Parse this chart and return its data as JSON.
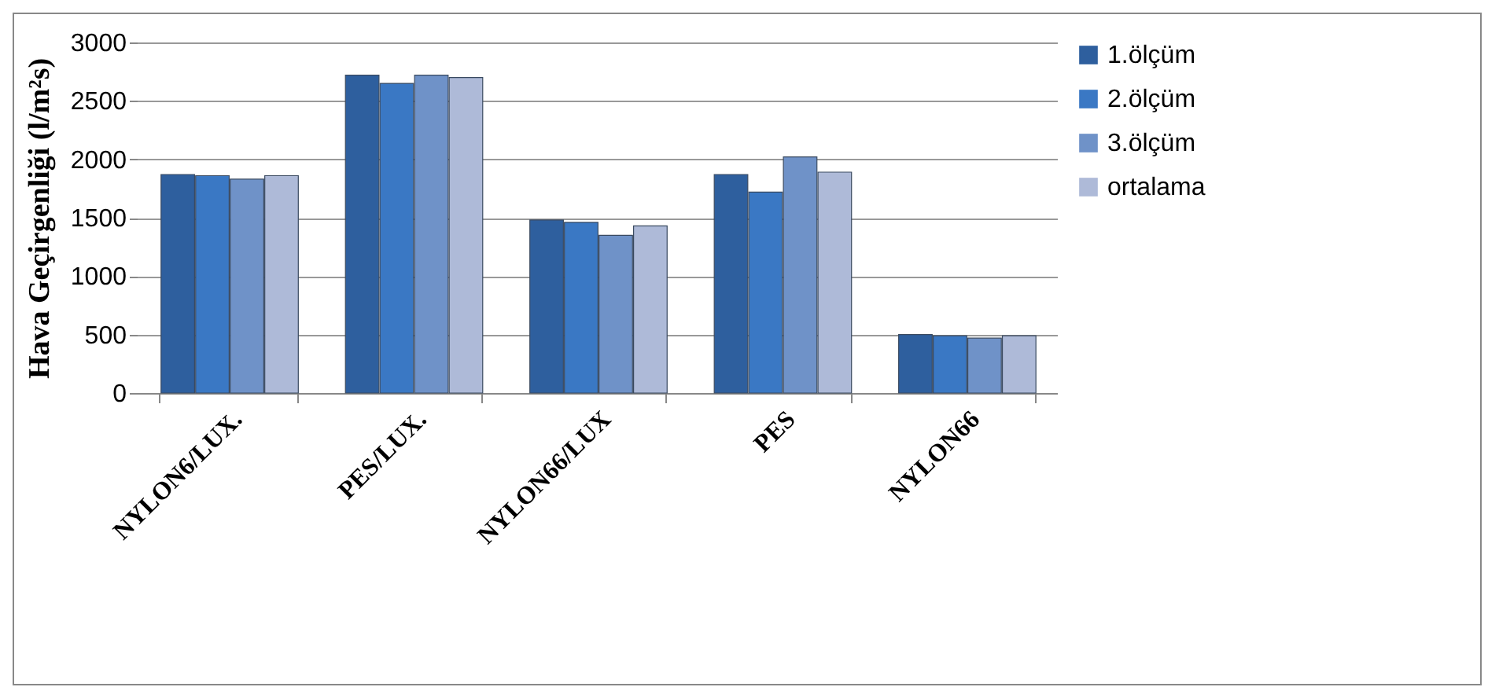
{
  "chart_data": {
    "type": "bar",
    "ylabel": "Hava Geçirgenliği (l/m²s)",
    "categories": [
      "NYLON6/LUX.",
      "PES/LUX.",
      "NYLON66/LUX",
      "PES",
      "NYLON66"
    ],
    "series": [
      {
        "name": "1.ölçüm",
        "color": "#2e5f9e",
        "values": [
          1870,
          2720,
          1480,
          1870,
          500
        ]
      },
      {
        "name": "2.ölçüm",
        "color": "#3a78c4",
        "values": [
          1860,
          2650,
          1460,
          1720,
          490
        ]
      },
      {
        "name": "3.ölçüm",
        "color": "#6f92c8",
        "values": [
          1830,
          2720,
          1350,
          2020,
          470
        ]
      },
      {
        "name": "ortalama",
        "color": "#aebad8",
        "values": [
          1860,
          2700,
          1430,
          1890,
          490
        ]
      }
    ],
    "ylim": [
      0,
      3000
    ],
    "yticks": [
      0,
      500,
      1000,
      1500,
      2000,
      2500,
      3000
    ],
    "grid": "y",
    "legend": "right"
  }
}
